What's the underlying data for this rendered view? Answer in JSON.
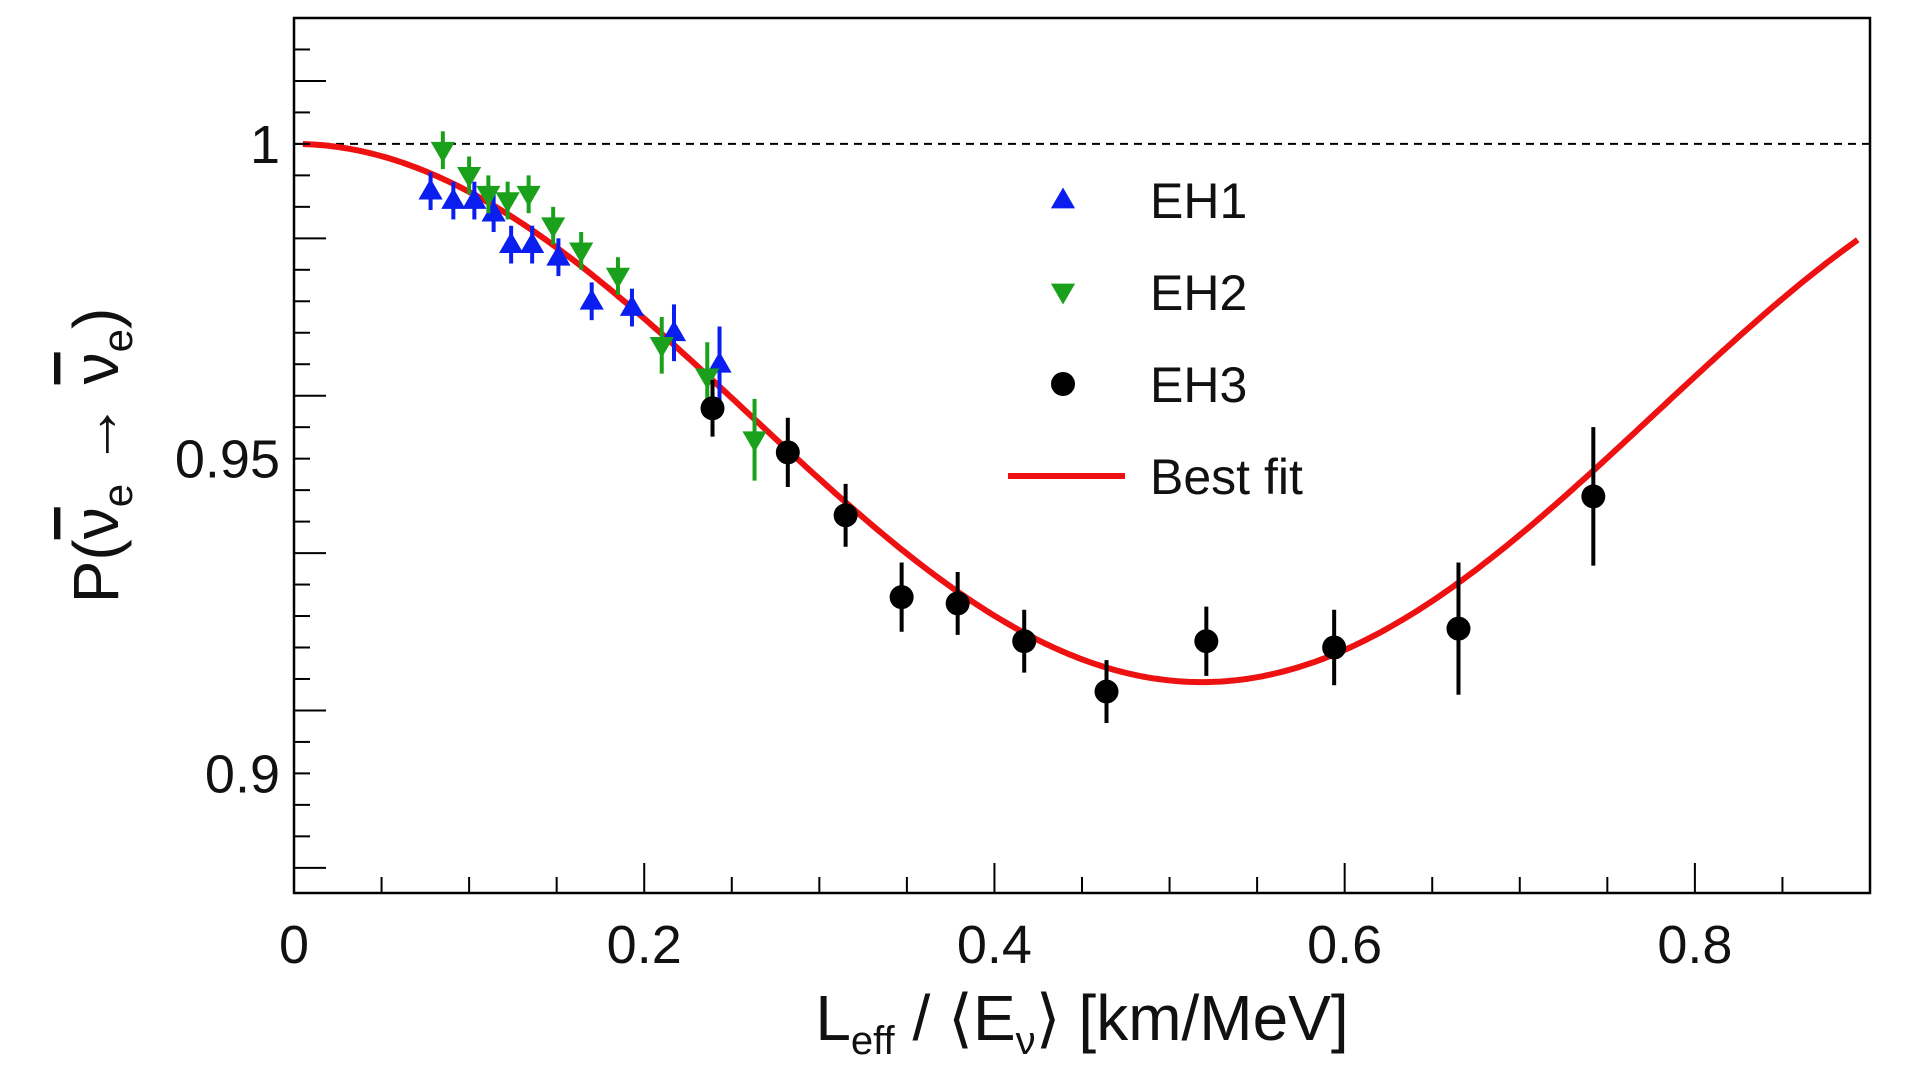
{
  "chart_data": {
    "type": "scatter",
    "xlabel": {
      "main": "L",
      "sub": "eff",
      "mid": " / ⟨E",
      "sub2": "ν",
      "tail": "⟩ [km/MeV]"
    },
    "ylabel": {
      "lead": "P(",
      "nu": "ν",
      "e": "e",
      "arrow": " → ",
      "nu2": "ν",
      "e2": "e",
      "close": ")"
    },
    "xlim": [
      0,
      0.9
    ],
    "ylim": [
      0.881,
      1.02
    ],
    "x_ticks": [
      {
        "value": 0,
        "label": "0"
      },
      {
        "value": 0.2,
        "label": "0.2"
      },
      {
        "value": 0.4,
        "label": "0.4"
      },
      {
        "value": 0.6,
        "label": "0.6"
      },
      {
        "value": 0.8,
        "label": "0.8"
      }
    ],
    "y_ticks": [
      {
        "value": 0.9,
        "label": "0.9"
      },
      {
        "value": 0.95,
        "label": "0.95"
      },
      {
        "value": 1.0,
        "label": "1"
      }
    ],
    "reference_line": 1.0,
    "legend_position": "upper-center",
    "series": [
      {
        "name": "EH1",
        "marker": "triangle-up",
        "color": "#0a1ef0",
        "points": [
          {
            "x": 0.078,
            "y": 0.9925,
            "err": 0.003
          },
          {
            "x": 0.091,
            "y": 0.991,
            "err": 0.003
          },
          {
            "x": 0.103,
            "y": 0.991,
            "err": 0.003
          },
          {
            "x": 0.114,
            "y": 0.989,
            "err": 0.003
          },
          {
            "x": 0.124,
            "y": 0.984,
            "err": 0.003
          },
          {
            "x": 0.136,
            "y": 0.984,
            "err": 0.003
          },
          {
            "x": 0.151,
            "y": 0.982,
            "err": 0.003
          },
          {
            "x": 0.17,
            "y": 0.975,
            "err": 0.003
          },
          {
            "x": 0.193,
            "y": 0.974,
            "err": 0.003
          },
          {
            "x": 0.217,
            "y": 0.97,
            "err": 0.0045
          },
          {
            "x": 0.243,
            "y": 0.965,
            "err": 0.006
          }
        ]
      },
      {
        "name": "EH2",
        "marker": "triangle-down",
        "color": "#1aa01a",
        "points": [
          {
            "x": 0.085,
            "y": 0.999,
            "err": 0.003
          },
          {
            "x": 0.1,
            "y": 0.995,
            "err": 0.003
          },
          {
            "x": 0.111,
            "y": 0.992,
            "err": 0.003
          },
          {
            "x": 0.122,
            "y": 0.991,
            "err": 0.003
          },
          {
            "x": 0.134,
            "y": 0.992,
            "err": 0.003
          },
          {
            "x": 0.148,
            "y": 0.987,
            "err": 0.003
          },
          {
            "x": 0.164,
            "y": 0.983,
            "err": 0.003
          },
          {
            "x": 0.185,
            "y": 0.979,
            "err": 0.003
          },
          {
            "x": 0.21,
            "y": 0.968,
            "err": 0.0045
          },
          {
            "x": 0.236,
            "y": 0.963,
            "err": 0.0055
          },
          {
            "x": 0.263,
            "y": 0.953,
            "err": 0.0065
          }
        ]
      },
      {
        "name": "EH3",
        "marker": "circle",
        "color": "#000000",
        "points": [
          {
            "x": 0.239,
            "y": 0.958,
            "err": 0.0045
          },
          {
            "x": 0.282,
            "y": 0.951,
            "err": 0.0055
          },
          {
            "x": 0.315,
            "y": 0.941,
            "err": 0.005
          },
          {
            "x": 0.347,
            "y": 0.928,
            "err": 0.0055
          },
          {
            "x": 0.379,
            "y": 0.927,
            "err": 0.005
          },
          {
            "x": 0.417,
            "y": 0.921,
            "err": 0.005
          },
          {
            "x": 0.464,
            "y": 0.913,
            "err": 0.005
          },
          {
            "x": 0.521,
            "y": 0.921,
            "err": 0.0055
          },
          {
            "x": 0.594,
            "y": 0.92,
            "err": 0.006
          },
          {
            "x": 0.665,
            "y": 0.923,
            "err": 0.0105
          },
          {
            "x": 0.742,
            "y": 0.944,
            "err": 0.011
          }
        ]
      }
    ],
    "fit": {
      "name": "Best fit",
      "color": "#ee1111",
      "model": "1 - A*sin^2(k*x)",
      "A": 0.0855,
      "k": 3.03,
      "x_range": [
        0.005,
        0.893
      ]
    }
  }
}
